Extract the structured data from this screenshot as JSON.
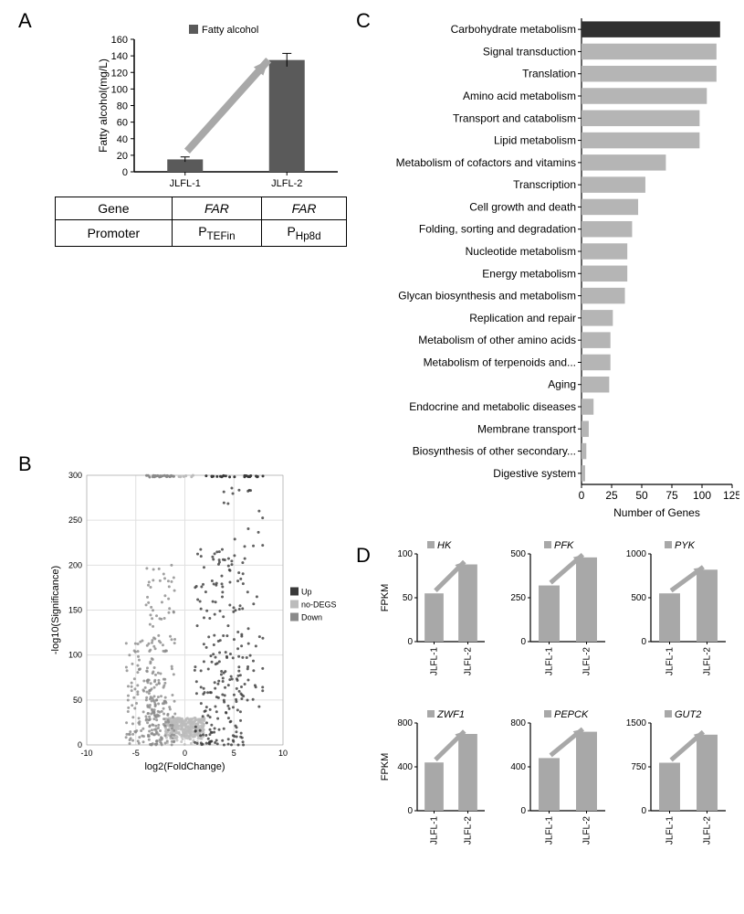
{
  "labels": {
    "A": "A",
    "B": "B",
    "C": "C",
    "D": "D"
  },
  "panel_a": {
    "legend": "Fatty alcohol",
    "ylabel": "Fatty alcohol(mg/L)",
    "ylim": [
      0,
      160
    ],
    "ytick_step": 20,
    "categories": [
      "JLFL-1",
      "JLFL-2"
    ],
    "values": [
      15,
      135
    ],
    "errors": [
      3,
      8
    ],
    "bar_color": "#5a5a5a",
    "legend_marker_color": "#5a5a5a",
    "bar_width": 0.35,
    "background_color": "#ffffff",
    "axis_color": "#000000",
    "label_fontsize": 12,
    "tick_fontsize": 11,
    "arrow_color": "#a8a8a8",
    "table": {
      "rows": [
        {
          "head": "Gene",
          "c1": "FAR",
          "c2": "FAR",
          "italic": true
        },
        {
          "head": "Promoter",
          "c1": "PTEFin",
          "c2": "PHp8d",
          "italic": false
        }
      ]
    }
  },
  "panel_b": {
    "xlabel": "log2(FoldChange)",
    "ylabel": "-log10(Significance)",
    "xlim": [
      -10,
      10
    ],
    "xtick_step": 5,
    "ylim": [
      0,
      300
    ],
    "ytick_step": 50,
    "legend": {
      "up": "Up",
      "no": "no-DEGS",
      "down": "Down"
    },
    "colors": {
      "up": "#3a3a3a",
      "no": "#bcbcbc",
      "down": "#8a8a8a"
    },
    "background_color": "#ffffff",
    "grid_color": "#e0e0e0",
    "label_fontsize": 11
  },
  "panel_c": {
    "type": "bar-horizontal",
    "xlabel": "Number of Genes",
    "xlim": [
      0,
      125
    ],
    "xtick_step": 25,
    "categories": [
      "Carbohydrate metabolism",
      "Signal transduction",
      "Translation",
      "Amino acid metabolism",
      "Transport and catabolism",
      "Lipid metabolism",
      "Metabolism of cofactors and vitamins",
      "Transcription",
      "Cell growth and death",
      "Folding, sorting and degradation",
      "Nucleotide metabolism",
      "Energy metabolism",
      "Glycan biosynthesis and metabolism",
      "Replication and repair",
      "Metabolism of other amino acids",
      "Metabolism of terpenoids and...",
      "Aging",
      "Endocrine and metabolic diseases",
      "Membrane transport",
      "Biosynthesis of other secondary...",
      "Digestive system"
    ],
    "values": [
      115,
      112,
      112,
      104,
      98,
      98,
      70,
      53,
      47,
      42,
      38,
      38,
      36,
      26,
      24,
      24,
      23,
      10,
      6,
      4,
      3,
      3
    ],
    "highlight_index": 0,
    "bar_color": "#b5b5b5",
    "highlight_color": "#303030",
    "label_fontsize": 12,
    "tick_fontsize": 12
  },
  "panel_d": {
    "ylabel": "FPKM",
    "arrow_color": "#a8a8a8",
    "bar_color": "#a8a8a8",
    "legend_marker_color": "#a8a8a8",
    "categories": [
      "JLFL-1",
      "JLFL-2"
    ],
    "tick_fontsize": 11,
    "charts": [
      {
        "title": "HK",
        "values": [
          55,
          88
        ],
        "ylim": [
          0,
          100
        ],
        "yticks": [
          0,
          50,
          100
        ]
      },
      {
        "title": "PFK",
        "values": [
          320,
          480
        ],
        "ylim": [
          0,
          500
        ],
        "yticks": [
          0,
          250,
          500
        ]
      },
      {
        "title": "PYK",
        "values": [
          550,
          820
        ],
        "ylim": [
          0,
          1000
        ],
        "yticks": [
          0,
          500,
          1000
        ]
      },
      {
        "title": "ZWF1",
        "values": [
          440,
          700
        ],
        "ylim": [
          0,
          800
        ],
        "yticks": [
          0,
          400,
          800
        ]
      },
      {
        "title": "PEPCK",
        "values": [
          480,
          720
        ],
        "ylim": [
          0,
          800
        ],
        "yticks": [
          0,
          400,
          800
        ]
      },
      {
        "title": "GUT2",
        "values": [
          820,
          1300
        ],
        "ylim": [
          0,
          1500
        ],
        "yticks": [
          0,
          750,
          1500
        ]
      }
    ]
  }
}
